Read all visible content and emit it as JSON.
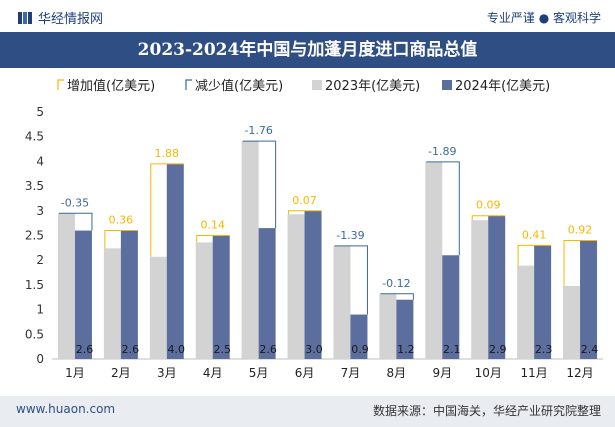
{
  "header": {
    "brand": "华经情报网",
    "tagline": "专业严谨 ● 客观科学"
  },
  "footer": {
    "website": "www.huaon.com",
    "source": "数据来源：中国海关，华经产业研究院整理"
  },
  "colors": {
    "bar2023": "#d3d3d3",
    "bar2024": "#5b6e9e",
    "increase": "#f5b800",
    "decrease": "#3a6a96",
    "title_bg": "#2f4f84"
  },
  "chart_data": {
    "type": "bar",
    "title": "2023-2024年中国与加蓬月度进口商品总值",
    "categories": [
      "1月",
      "2月",
      "3月",
      "4月",
      "5月",
      "6月",
      "7月",
      "8月",
      "9月",
      "10月",
      "11月",
      "12月"
    ],
    "series": [
      {
        "name": "2023年(亿美元)",
        "values": [
          2.95,
          2.24,
          2.07,
          2.36,
          4.41,
          2.93,
          2.29,
          1.32,
          3.99,
          2.81,
          1.89,
          1.48
        ]
      },
      {
        "name": "2024年(亿美元)",
        "values": [
          2.6,
          2.6,
          3.95,
          2.5,
          2.65,
          3.0,
          0.9,
          1.2,
          2.1,
          2.9,
          2.3,
          2.4
        ]
      }
    ],
    "bar_labels_2024": [
      "2.6",
      "2.6",
      "4.0",
      "2.5",
      "2.6",
      "3.0",
      "0.9",
      "1.2",
      "2.1",
      "2.9",
      "2.3",
      "2.4"
    ],
    "change_labels": [
      "-0.35",
      "0.36",
      "1.88",
      "0.14",
      "-1.76",
      "0.07",
      "-1.39",
      "-0.12",
      "-1.89",
      "0.09",
      "0.41",
      "0.92"
    ],
    "legend": [
      "增加值(亿美元)",
      "减少值(亿美元)",
      "2023年(亿美元)",
      "2024年(亿美元)"
    ],
    "yticks": [
      "0",
      "0.5",
      "1",
      "1.5",
      "2",
      "2.5",
      "3",
      "3.5",
      "4",
      "4.5",
      "5"
    ],
    "ylim": [
      0,
      5
    ],
    "xlabel": "",
    "ylabel": ""
  }
}
